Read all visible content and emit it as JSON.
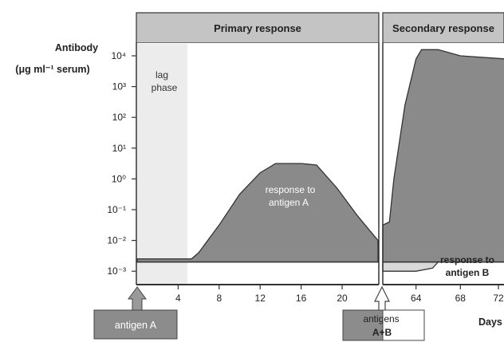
{
  "chart_data": {
    "type": "area",
    "ylabel": [
      "Antibody",
      "(μg ml⁻¹ serum)"
    ],
    "xlabel": "Days",
    "y_scale": "log",
    "y_ticks": [
      {
        "exp": 4,
        "label": "10⁴"
      },
      {
        "exp": 3,
        "label": "10³"
      },
      {
        "exp": 2,
        "label": "10²"
      },
      {
        "exp": 1,
        "label": "10¹"
      },
      {
        "exp": 0,
        "label": "10⁰"
      },
      {
        "exp": -1,
        "label": "10⁻¹"
      },
      {
        "exp": -2,
        "label": "10⁻²"
      },
      {
        "exp": -3,
        "label": "10⁻³"
      }
    ],
    "x_ticks_primary": [
      4,
      8,
      12,
      16,
      20
    ],
    "x_ticks_secondary": [
      64,
      68,
      72
    ],
    "x_tick_labels_primary": [
      "4",
      "8",
      "12",
      "16",
      "20"
    ],
    "x_tick_labels_secondary": [
      "64",
      "68",
      "72"
    ],
    "segments": {
      "primary": {
        "x_range": [
          0,
          23.5
        ]
      },
      "secondary": {
        "x_range": [
          61,
          72
        ]
      }
    },
    "series": [
      {
        "name": "response to antigen A",
        "segment": "primary",
        "color": "#8a8a8a",
        "points": [
          [
            0,
            -2.6
          ],
          [
            5.3,
            -2.6
          ],
          [
            6,
            -2.4
          ],
          [
            8,
            -1.5
          ],
          [
            10,
            -0.5
          ],
          [
            12,
            0.2
          ],
          [
            13.5,
            0.5
          ],
          [
            16,
            0.5
          ],
          [
            17.5,
            0.45
          ],
          [
            19.5,
            -0.3
          ],
          [
            21.5,
            -1.2
          ],
          [
            23.5,
            -2.0
          ]
        ]
      },
      {
        "name": "response to antigen A",
        "segment": "secondary",
        "color": "#8a8a8a",
        "points": [
          [
            61,
            -1.5
          ],
          [
            61.6,
            -1.4
          ],
          [
            62,
            0.0
          ],
          [
            63,
            2.4
          ],
          [
            64,
            3.9
          ],
          [
            64.5,
            4.2
          ],
          [
            66,
            4.2
          ],
          [
            68,
            4.0
          ],
          [
            72,
            3.9
          ]
        ]
      },
      {
        "name": "response to antigen B",
        "segment": "secondary",
        "color": "#d8d8d8",
        "points": [
          [
            61,
            -3.0
          ],
          [
            64,
            -3.0
          ],
          [
            65.5,
            -2.9
          ],
          [
            67,
            -2.3
          ],
          [
            69,
            -1.6
          ],
          [
            71,
            -0.6
          ],
          [
            72,
            -0.45
          ]
        ]
      }
    ],
    "baseline_exp": -2.7,
    "bands": [
      {
        "label": "Primary response",
        "segment": "primary"
      },
      {
        "label": "Secondary response",
        "segment": "secondary"
      }
    ],
    "annotations": {
      "lag_phase": [
        "lag",
        "phase"
      ],
      "response_a": [
        "response to",
        "antigen A"
      ],
      "response_b": [
        "response to",
        "antigen B"
      ]
    },
    "arrows": [
      {
        "label": [
          "antigen A"
        ],
        "day": 0
      },
      {
        "label": [
          "antigens",
          "A+B"
        ],
        "day": 61
      }
    ],
    "colors": {
      "band": "#c4c4c4",
      "area_a": "#8a8a8a",
      "area_b": "#d8d8d8",
      "lag": "#ececec",
      "arrow_box": "#8c8c8c"
    }
  }
}
